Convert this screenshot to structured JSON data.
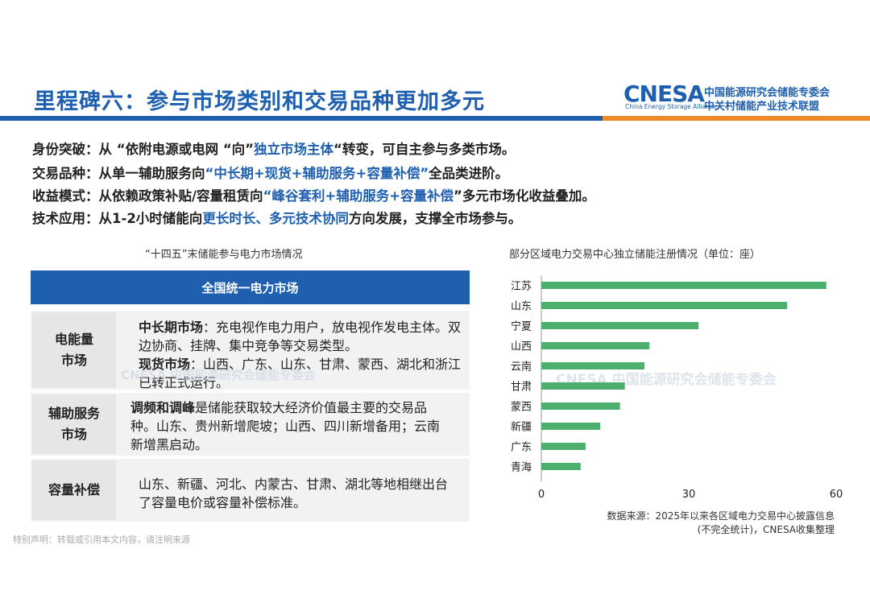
{
  "title": "里程碑六：参与市场类别和交易品种更加多元",
  "logo": {
    "name": "CNESA",
    "sub": "China Energy Storage Alliance",
    "cn_line1": "中国能源研究会储能专委会",
    "cn_line2": "中关村储能产业技术联盟"
  },
  "bullets": [
    {
      "label": "身份突破：",
      "pre": "从 “依附电源或电网 “向”",
      "hl": "独立市场主体",
      "post": "“转变，可自主参与多类市场。"
    },
    {
      "label": "交易品种：",
      "pre": "从单一辅助服务向",
      "hl": "“中长期+现货+辅助服务+容量补偿”",
      "post": "全品类进阶。"
    },
    {
      "label": "收益模式：",
      "pre": "从依赖政策补贴/容量租赁向",
      "hl": "“峰谷套利+辅助服务+容量补偿",
      "post": "”多元市场化收益叠加。"
    },
    {
      "label": "技术应用：",
      "pre": "从1-2小时储能向",
      "hl": "更长时长、多元技术协同",
      "post": "方向发展，支撑全市场参与。"
    }
  ],
  "left_section": {
    "title": "“十四五”末储能参与电力市场情况",
    "header": "全国统一电力市场",
    "rows": [
      {
        "label_l1": "电能量",
        "label_l2": "市场",
        "b1": "中长期市场",
        "t1": "：充电视作电力用户，放电视作发电主体。双边协商、挂牌、集中竞争等交易类型。",
        "b2": "现货市场",
        "t2": "：山西、广东、山东、甘肃、蒙西、湖北和浙江已转正式运行。"
      },
      {
        "label_l1": "辅助服务",
        "label_l2": "市场",
        "b1": "调频和调峰",
        "t1": "是储能获取较大经济价值最主要的交易品种。山东、贵州新增爬坡；山西、四川新增备用；云南新增黑启动。"
      },
      {
        "label_l1": "容量补偿",
        "label_l2": "",
        "t1": "山东、新疆、河北、内蒙古、甘肃、湖北等地相继出台了容量电价或容量补偿标准。"
      }
    ]
  },
  "footnote": "特别声明：转载或引用本文内容，请注明来源",
  "chart_data": {
    "type": "bar",
    "orientation": "horizontal",
    "title": "部分区域电力交易中心独立储能注册情况（单位：座）",
    "categories": [
      "江苏",
      "山东",
      "宁夏",
      "山西",
      "云南",
      "甘肃",
      "蒙西",
      "新疆",
      "广东",
      "青海"
    ],
    "values": [
      58,
      50,
      32,
      22,
      21,
      17,
      16,
      12,
      9,
      8
    ],
    "xlim": [
      0,
      60
    ],
    "xticks": [
      0,
      30,
      60
    ],
    "grid": false,
    "color": "#4caf6d"
  },
  "source_line1": "数据来源：2025年以来各区域电力交易中心披露信息",
  "source_line2": "(不完全统计)，CNESA收集整理"
}
